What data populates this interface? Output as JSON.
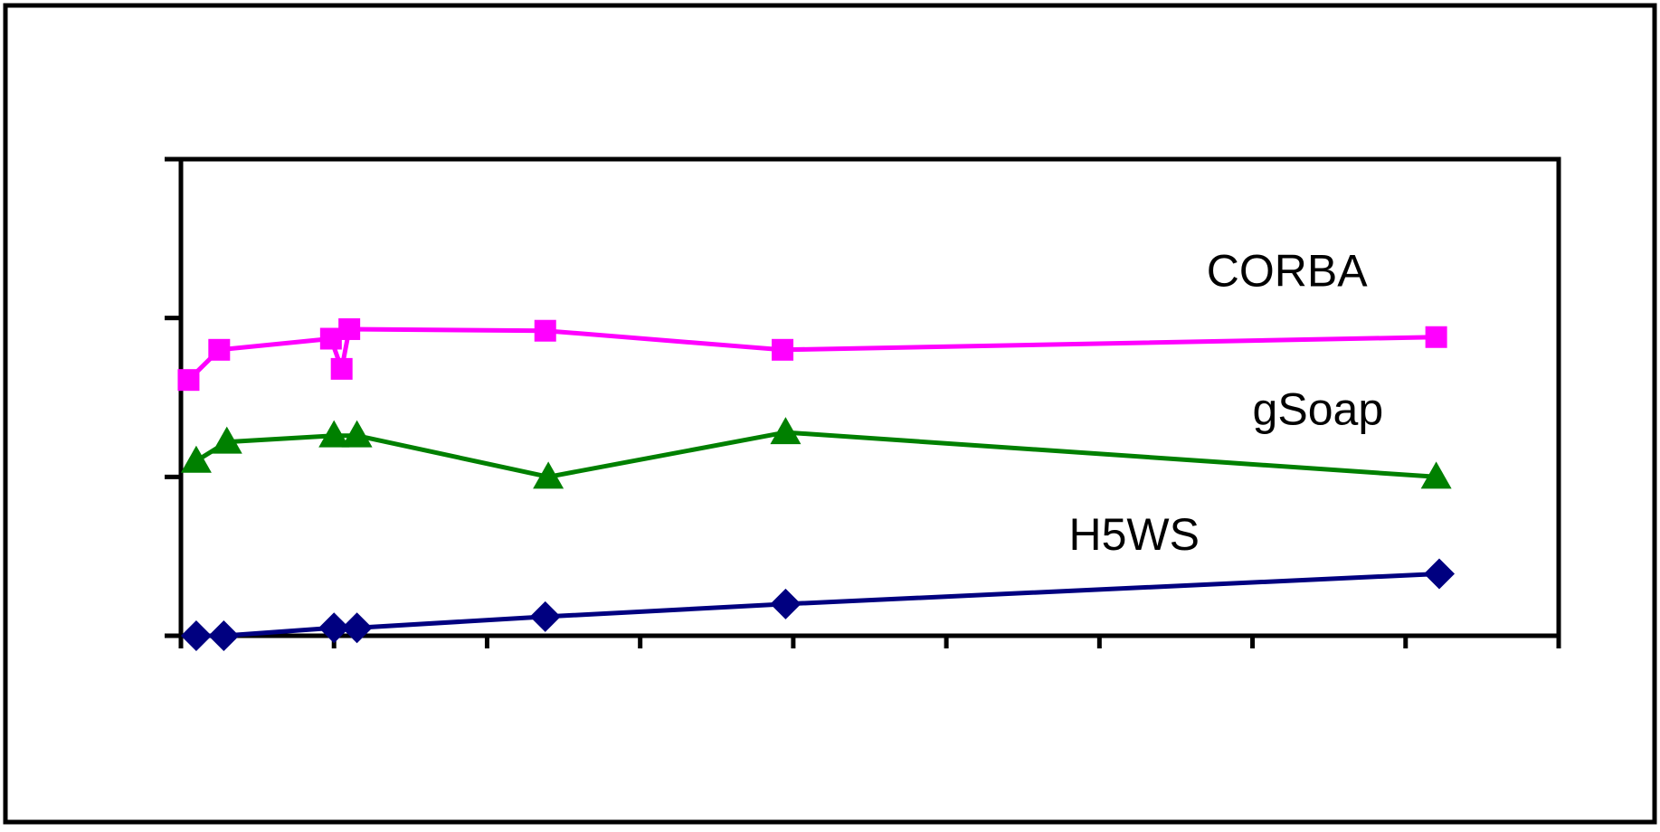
{
  "chart_data": {
    "type": "line",
    "title": "",
    "xlabel": "",
    "ylabel": "",
    "xlim": [
      0,
      9
    ],
    "ylim": [
      0,
      3
    ],
    "x_ticks": [
      0,
      1,
      2,
      3,
      4,
      5,
      6,
      7,
      8,
      9
    ],
    "y_ticks": [
      0,
      1,
      2,
      3
    ],
    "grid": false,
    "legend": "none",
    "series": [
      {
        "name": "CORBA",
        "color": "#ff00ff",
        "marker": "square",
        "x": [
          0.05,
          0.25,
          0.98,
          1.05,
          1.1,
          2.38,
          3.93,
          8.2
        ],
        "y": [
          1.61,
          1.8,
          1.87,
          1.68,
          1.93,
          1.92,
          1.8,
          1.88
        ]
      },
      {
        "name": "gSoap",
        "color": "#008000",
        "marker": "triangle",
        "x": [
          0.1,
          0.3,
          1.0,
          1.15,
          2.4,
          3.95,
          8.2
        ],
        "y": [
          1.1,
          1.22,
          1.26,
          1.26,
          1.0,
          1.28,
          1.0
        ]
      },
      {
        "name": "H5WS",
        "color": "#000080",
        "marker": "diamond",
        "x": [
          0.1,
          0.28,
          1.0,
          1.15,
          2.38,
          3.95,
          8.22
        ],
        "y": [
          0.0,
          0.0,
          0.05,
          0.05,
          0.12,
          0.2,
          0.39
        ]
      }
    ],
    "annotations": [
      {
        "text": "CORBA",
        "x": 6.7,
        "y": 2.2
      },
      {
        "text": "gSoap",
        "x": 7.0,
        "y": 1.33
      },
      {
        "text": "H5WS",
        "x": 5.8,
        "y": 0.54
      }
    ]
  }
}
